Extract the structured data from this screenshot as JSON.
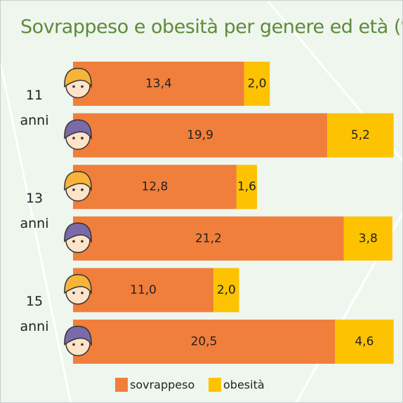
{
  "chart_data": {
    "type": "stacked-bar-horizontal",
    "title": "Sovrappeso e obesità per genere ed età (%)",
    "groups": [
      "11 anni",
      "13 anni",
      "15 anni"
    ],
    "xlim": [
      0,
      25.5
    ],
    "series": [
      {
        "name": "sovrappeso",
        "color": "#f07f3c",
        "values": [
          13.4,
          19.9,
          12.8,
          21.2,
          11.0,
          20.5
        ],
        "value_labels": [
          "13,4",
          "19,9",
          "12,8",
          "21,2",
          "11,0",
          "20,5"
        ]
      },
      {
        "name": "obesità",
        "color": "#fdc300",
        "values": [
          2.0,
          5.2,
          1.6,
          3.8,
          2.0,
          4.6
        ],
        "value_labels": [
          "2,0",
          "5,2",
          "1,6",
          "3,8",
          "2,0",
          "4,6"
        ]
      }
    ]
  }
}
